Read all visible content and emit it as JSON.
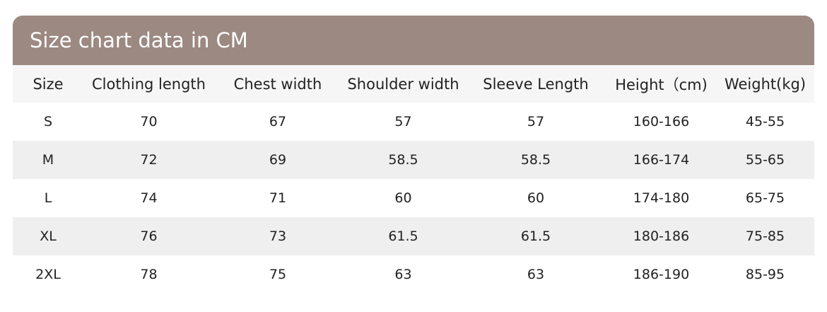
{
  "header": {
    "title": "Size chart data in CM"
  },
  "table": {
    "columns": [
      "Size",
      "Clothing length",
      "Chest width",
      "Shoulder width",
      "Sleeve Length",
      "Height（cm)",
      "Weight(kg)"
    ],
    "rows": [
      [
        "S",
        70,
        67,
        57,
        57,
        "160-166",
        "45-55"
      ],
      [
        "M",
        72,
        69,
        58.5,
        58.5,
        "166-174",
        "55-65"
      ],
      [
        "L",
        74,
        71,
        60,
        60,
        "174-180",
        "65-75"
      ],
      [
        "XL",
        76,
        73,
        61.5,
        61.5,
        "180-186",
        "75-85"
      ],
      [
        "2XL",
        78,
        75,
        63,
        63,
        "186-190",
        "85-95"
      ]
    ]
  }
}
